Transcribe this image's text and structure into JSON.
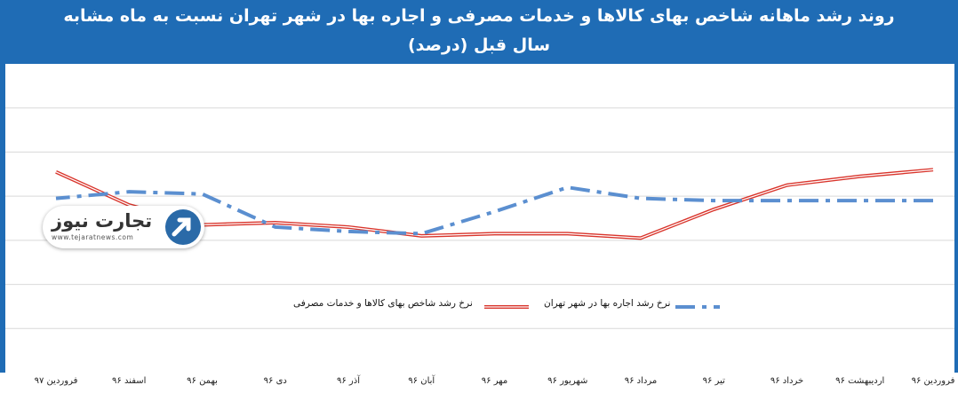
{
  "title_line1": "روند رشد ماهانه شاخص بهای کالاها و خدمات مصرفی و اجاره بها در شهر تهران نسبت به ماه مشابه",
  "title_line2": "سال قبل (درصد)",
  "logo": {
    "name": "تجارت نیوز",
    "url": "www.tejaratnews.com"
  },
  "colors": {
    "background": "#1f6cb5",
    "cpi_line": "#d9342b",
    "rent_line": "#5b8fd0"
  },
  "chart_data": {
    "type": "line",
    "x_direction": "right-to-left",
    "categories": [
      "فروردین ۹۶",
      "اردیبهشت ۹۶",
      "خرداد ۹۶",
      "تیر ۹۶",
      "مرداد ۹۶",
      "شهریور ۹۶",
      "مهر ۹۶",
      "آبان ۹۶",
      "آذر ۹۶",
      "دی ۹۶",
      "بهمن ۹۶",
      "اسفند ۹۶",
      "فروردین ۹۷"
    ],
    "series": [
      {
        "name": "نرخ رشد شاخص بهای کالاها و خدمات مصرفی",
        "style": "double-red",
        "values": [
          9.2,
          8.9,
          8.5,
          7.4,
          6.1,
          6.3,
          6.3,
          6.2,
          6.6,
          6.8,
          6.7,
          7.6,
          9.1
        ]
      },
      {
        "name": "نرخ رشد اجاره بها در شهر تهران",
        "style": "dash-dot-blue",
        "values": [
          7.8,
          7.8,
          7.8,
          7.8,
          7.9,
          8.4,
          7.3,
          6.3,
          6.4,
          6.6,
          8.1,
          8.2,
          7.9
        ]
      }
    ],
    "ylim": [
      0,
      14
    ],
    "grid": true,
    "legend": "bottom"
  }
}
